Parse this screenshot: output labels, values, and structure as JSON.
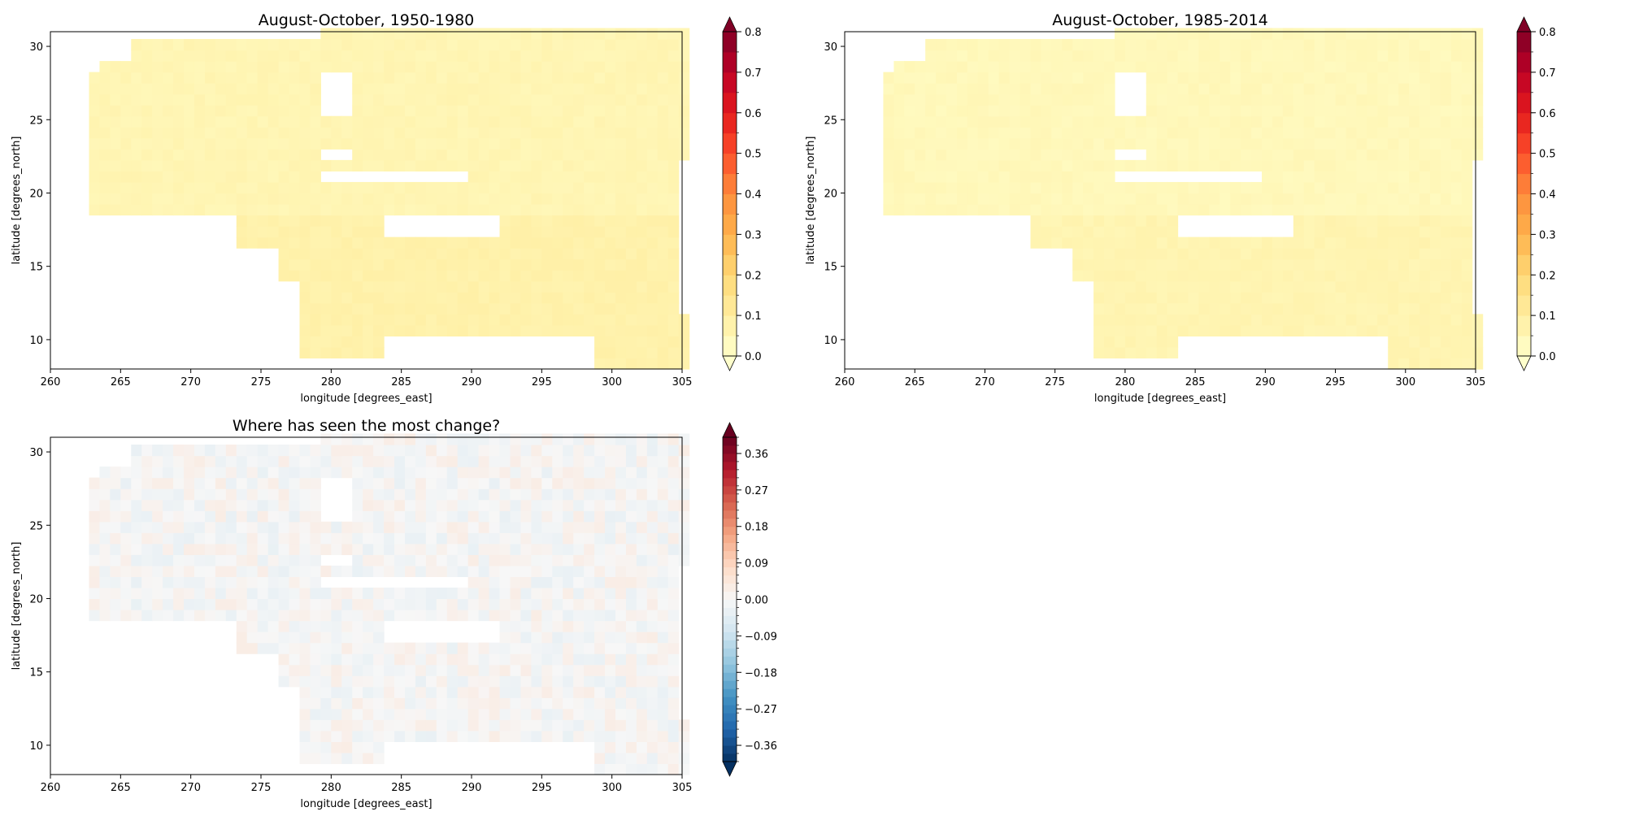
{
  "chart_data": [
    {
      "type": "heatmap",
      "title": "August-October, 1950-1980",
      "xlabel": "longitude [degrees_east]",
      "ylabel": "latitude [degrees_north]",
      "xlim": [
        260,
        305
      ],
      "ylim": [
        8,
        31
      ],
      "xticks": [
        260,
        265,
        270,
        275,
        280,
        285,
        290,
        295,
        300,
        305
      ],
      "yticks": [
        10,
        15,
        20,
        25,
        30
      ],
      "colormap": "YlOrRd",
      "colorbar": {
        "min": 0.0,
        "max": 0.8,
        "levels": 16,
        "extend": "both",
        "ticks": [
          0.0,
          0.1,
          0.2,
          0.3,
          0.4,
          0.5,
          0.6,
          0.7,
          0.8
        ],
        "tick_labels": [
          "0.0",
          "0.1",
          "0.2",
          "0.3",
          "0.4",
          "0.5",
          "0.6",
          "0.7",
          "0.8"
        ]
      },
      "value_range_observed": [
        0.0,
        0.1
      ]
    },
    {
      "type": "heatmap",
      "title": "August-October, 1985-2014",
      "xlabel": "longitude [degrees_east]",
      "ylabel": "latitude [degrees_north]",
      "xlim": [
        260,
        305
      ],
      "ylim": [
        8,
        31
      ],
      "xticks": [
        260,
        265,
        270,
        275,
        280,
        285,
        290,
        295,
        300,
        305
      ],
      "yticks": [
        10,
        15,
        20,
        25,
        30
      ],
      "colormap": "YlOrRd",
      "colorbar": {
        "min": 0.0,
        "max": 0.8,
        "levels": 16,
        "extend": "both",
        "ticks": [
          0.0,
          0.1,
          0.2,
          0.3,
          0.4,
          0.5,
          0.6,
          0.7,
          0.8
        ],
        "tick_labels": [
          "0.0",
          "0.1",
          "0.2",
          "0.3",
          "0.4",
          "0.5",
          "0.6",
          "0.7",
          "0.8"
        ]
      },
      "value_range_observed": [
        0.0,
        0.1
      ]
    },
    {
      "type": "heatmap",
      "title": "Where has seen the most change?",
      "xlabel": "longitude [degrees_east]",
      "ylabel": "latitude [degrees_north]",
      "xlim": [
        260,
        305
      ],
      "ylim": [
        8,
        31
      ],
      "xticks": [
        260,
        265,
        270,
        275,
        280,
        285,
        290,
        295,
        300,
        305
      ],
      "yticks": [
        10,
        15,
        20,
        25,
        30
      ],
      "colormap": "RdBu_r",
      "colorbar": {
        "min": -0.4,
        "max": 0.4,
        "levels": 40,
        "extend": "both",
        "ticks": [
          -0.36,
          -0.27,
          -0.18,
          -0.09,
          0.0,
          0.09,
          0.18,
          0.27,
          0.36
        ],
        "tick_labels": [
          "−0.36",
          "−0.27",
          "−0.18",
          "−0.09",
          "0.00",
          "0.09",
          "0.18",
          "0.27",
          "0.36"
        ]
      },
      "value_range_observed": [
        -0.05,
        0.05
      ]
    }
  ]
}
